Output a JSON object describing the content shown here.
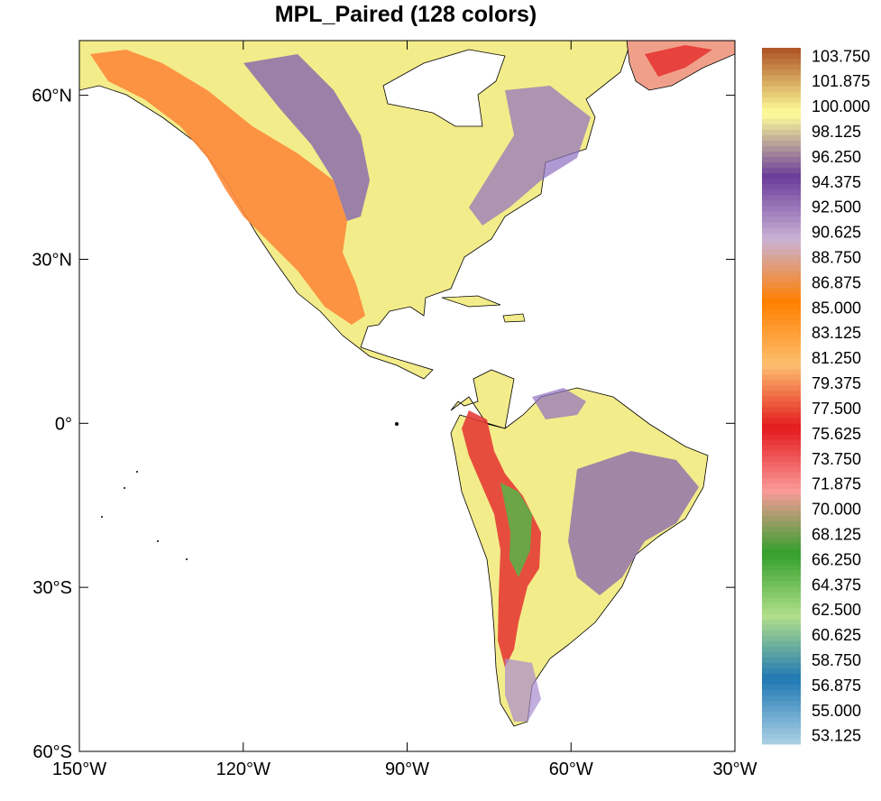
{
  "title": "MPL_Paired (128 colors)",
  "map": {
    "lon_range": [
      -150,
      -30
    ],
    "lat_range": [
      -60,
      70
    ],
    "x_ticks": [
      {
        "value": -150,
        "label": "150°W"
      },
      {
        "value": -120,
        "label": "120°W"
      },
      {
        "value": -90,
        "label": "90°W"
      },
      {
        "value": -60,
        "label": "60°W"
      },
      {
        "value": -30,
        "label": "30°W"
      }
    ],
    "y_ticks": [
      {
        "value": 60,
        "label": "60°N"
      },
      {
        "value": 30,
        "label": "30°N"
      },
      {
        "value": 0,
        "label": "0°"
      },
      {
        "value": -30,
        "label": "30°S"
      },
      {
        "value": -60,
        "label": "60°S"
      }
    ]
  },
  "colorbar": {
    "colormap": "MPL_Paired",
    "min_value": 52.5,
    "max_value": 104.375,
    "labels": [
      "103.750",
      "101.875",
      "100.000",
      "98.125",
      "96.250",
      "94.375",
      "92.500",
      "90.625",
      "88.750",
      "86.875",
      "85.000",
      "83.125",
      "81.250",
      "79.375",
      "77.500",
      "75.625",
      "73.750",
      "71.875",
      "70.000",
      "68.125",
      "66.250",
      "64.375",
      "62.500",
      "60.625",
      "58.750",
      "56.875",
      "55.000",
      "53.125"
    ]
  },
  "colors": {
    "lightblue": "#a6cee3",
    "blue": "#1f78b4",
    "lightgreen": "#b2df8a",
    "green": "#33a02c",
    "pink": "#fb9a99",
    "red": "#e31a1c",
    "lightorange": "#fdbf6f",
    "orange": "#ff7f00",
    "lavender": "#cab2d6",
    "purple": "#6a3d9a",
    "yellow": "#ffff99",
    "brown": "#b15928",
    "coast": "#000000"
  }
}
